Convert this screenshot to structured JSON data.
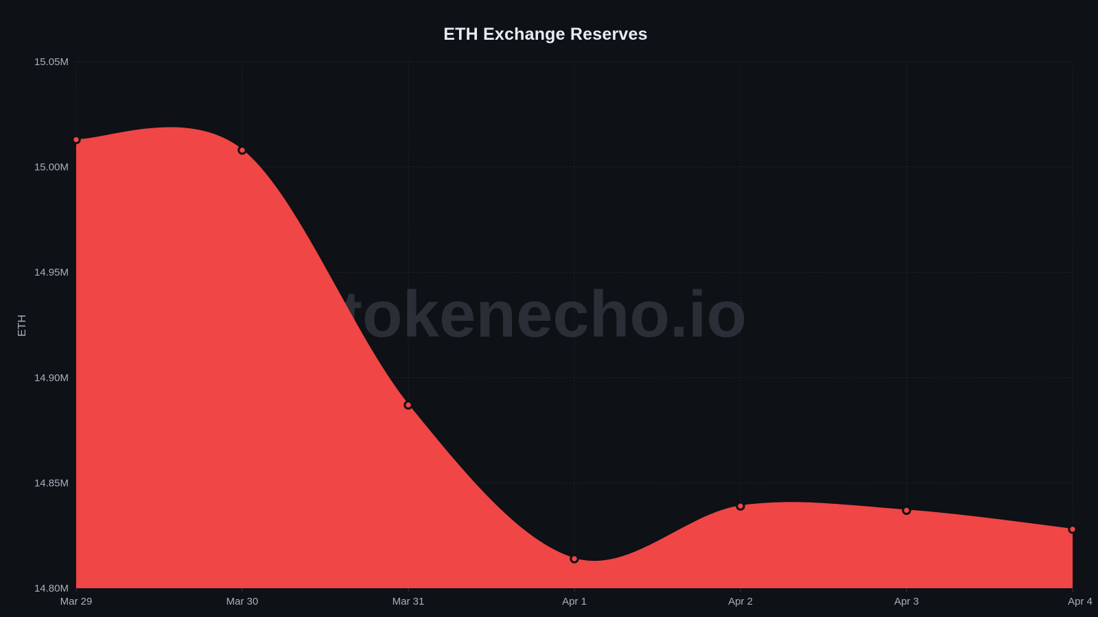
{
  "page": {
    "background_color": "#0e1116"
  },
  "watermark": {
    "text": "tokenecho.io",
    "color": "#2b2e36"
  },
  "chart_data": {
    "type": "area",
    "title": "ETH Exchange Reserves",
    "xlabel": "",
    "ylabel": "ETH",
    "unit": "M",
    "categories": [
      "Mar 29",
      "Mar 30",
      "Mar 31",
      "Apr 1",
      "Apr 2",
      "Apr 3",
      "Apr 4"
    ],
    "series": [
      {
        "name": "ETH Exchange Reserves",
        "values": [
          15.013,
          15.008,
          14.887,
          14.814,
          14.839,
          14.837,
          14.828
        ]
      }
    ],
    "ylim": [
      14.8,
      15.05
    ],
    "y_ticks": [
      {
        "value": 15.05,
        "label": "15.05M"
      },
      {
        "value": 15.0,
        "label": "15.00M"
      },
      {
        "value": 14.95,
        "label": "14.95M"
      },
      {
        "value": 14.9,
        "label": "14.90M"
      },
      {
        "value": 14.85,
        "label": "14.85M"
      },
      {
        "value": 14.8,
        "label": "14.80M"
      }
    ],
    "grid": "dotted",
    "legend": false,
    "smooth": true,
    "colors": {
      "area_fill": "#f04646",
      "line": "#f04646",
      "marker_fill": "#f04646",
      "marker_stroke": "#0e1116",
      "grid": "#3a3e46",
      "tick_text": "#a9b0bd",
      "title_text": "#e8ebf1"
    }
  }
}
